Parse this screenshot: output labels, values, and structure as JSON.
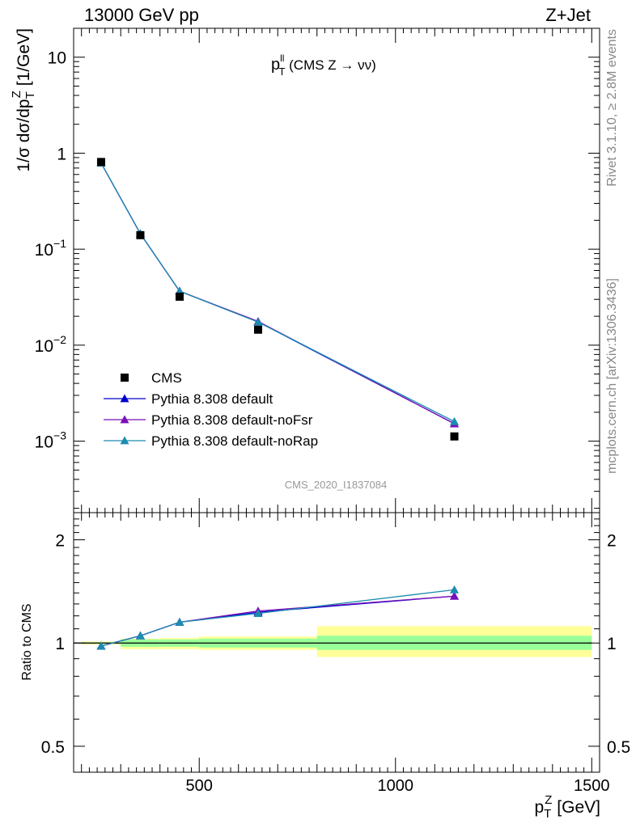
{
  "header": {
    "left": "13000 GeV pp",
    "right": "Z+Jet"
  },
  "side_labels": {
    "top": "Rivet 3.1.10, ≥ 2.8M events",
    "bottom": "mcplots.cern.ch [arXiv:1306.3436]"
  },
  "chart_data": [
    {
      "type": "scatter",
      "panel": "main",
      "title": "p∥T (CMS Z → νν)",
      "title_parts": {
        "main": "p",
        "sup": "ll",
        "sub": "T",
        "rest": " (CMS Z → νν)"
      },
      "ylabel": "1/σ dσ/dp_T^Z [1/GeV]",
      "ylabel_parts": {
        "a": "1/σ dσ/dp",
        "sub": "T",
        "sup": "Z",
        "b": " [1/GeV]"
      },
      "yscale": "log",
      "ylim": [
        0.00018,
        20
      ],
      "xlim": [
        180,
        1520
      ],
      "watermark": "CMS_2020_I1837084",
      "y_ticks": [
        {
          "v": 10,
          "base": "10",
          "exp": ""
        },
        {
          "v": 1,
          "base": "1",
          "exp": ""
        },
        {
          "v": 0.1,
          "base": "10",
          "exp": "−1"
        },
        {
          "v": 0.01,
          "base": "10",
          "exp": "−2"
        },
        {
          "v": 0.001,
          "base": "10",
          "exp": "−3"
        }
      ],
      "legend_placement": "lower-left",
      "series": [
        {
          "name": "CMS",
          "marker": "square",
          "color": "#000000",
          "x": [
            250,
            350,
            450,
            650,
            1150
          ],
          "y": [
            0.81,
            0.14,
            0.032,
            0.0145,
            0.00112
          ]
        },
        {
          "name": "Pythia 8.308 default",
          "marker": "triangle",
          "color": "#0000cc",
          "x": [
            250,
            350,
            450,
            650,
            1150
          ],
          "y": [
            0.79,
            0.145,
            0.0365,
            0.0175,
            0.00152
          ]
        },
        {
          "name": "Pythia 8.308 default-noFsr",
          "marker": "triangle",
          "color": "#7a0fb8",
          "x": [
            250,
            350,
            450,
            650,
            1150
          ],
          "y": [
            0.79,
            0.145,
            0.0365,
            0.0177,
            0.00152
          ]
        },
        {
          "name": "Pythia 8.308 default-noRap",
          "marker": "triangle",
          "color": "#1b8cb0",
          "x": [
            250,
            350,
            450,
            650,
            1150
          ],
          "y": [
            0.79,
            0.145,
            0.0365,
            0.0174,
            0.0016
          ]
        }
      ]
    },
    {
      "type": "line",
      "panel": "ratio",
      "ylabel": "Ratio to CMS",
      "yscale": "log",
      "ylim": [
        0.42,
        2.4
      ],
      "xlim": [
        180,
        1520
      ],
      "xlabel": "p_T^Z [GeV]",
      "xlabel_parts": {
        "a": "p",
        "sub": "T",
        "sup": "Z",
        "b": " [GeV]"
      },
      "x_ticks": [
        500,
        1000,
        1500
      ],
      "y_ticks": [
        0.5,
        1,
        2
      ],
      "uncertainty_bands": [
        {
          "x0": 200,
          "x1": 300,
          "stat": [
            0.995,
            1.005
          ],
          "total": [
            0.99,
            1.01
          ]
        },
        {
          "x0": 300,
          "x1": 400,
          "stat": [
            0.975,
            1.025
          ],
          "total": [
            0.96,
            1.03
          ]
        },
        {
          "x0": 400,
          "x1": 500,
          "stat": [
            0.975,
            1.025
          ],
          "total": [
            0.96,
            1.035
          ]
        },
        {
          "x0": 500,
          "x1": 800,
          "stat": [
            0.97,
            1.03
          ],
          "total": [
            0.955,
            1.045
          ]
        },
        {
          "x0": 800,
          "x1": 1500,
          "stat": [
            0.955,
            1.05
          ],
          "total": [
            0.91,
            1.12
          ]
        }
      ],
      "series": [
        {
          "name": "Pythia 8.308 default",
          "color": "#0000cc",
          "x": [
            250,
            350,
            450,
            650,
            1150
          ],
          "y": [
            0.98,
            1.05,
            1.15,
            1.23,
            1.37
          ],
          "err": [
            0.005,
            0.01,
            0.01,
            0.015,
            0.03
          ]
        },
        {
          "name": "Pythia 8.308 default-noFsr",
          "color": "#7a0fb8",
          "x": [
            250,
            350,
            450,
            650,
            1150
          ],
          "y": [
            0.98,
            1.05,
            1.15,
            1.24,
            1.37
          ],
          "err": [
            0.005,
            0.01,
            0.01,
            0.015,
            0.03
          ]
        },
        {
          "name": "Pythia 8.308 default-noRap",
          "color": "#1b8cb0",
          "x": [
            250,
            350,
            450,
            650,
            1150
          ],
          "y": [
            0.98,
            1.05,
            1.15,
            1.22,
            1.43
          ],
          "err": [
            0.005,
            0.01,
            0.01,
            0.015,
            0.03
          ]
        }
      ]
    }
  ]
}
